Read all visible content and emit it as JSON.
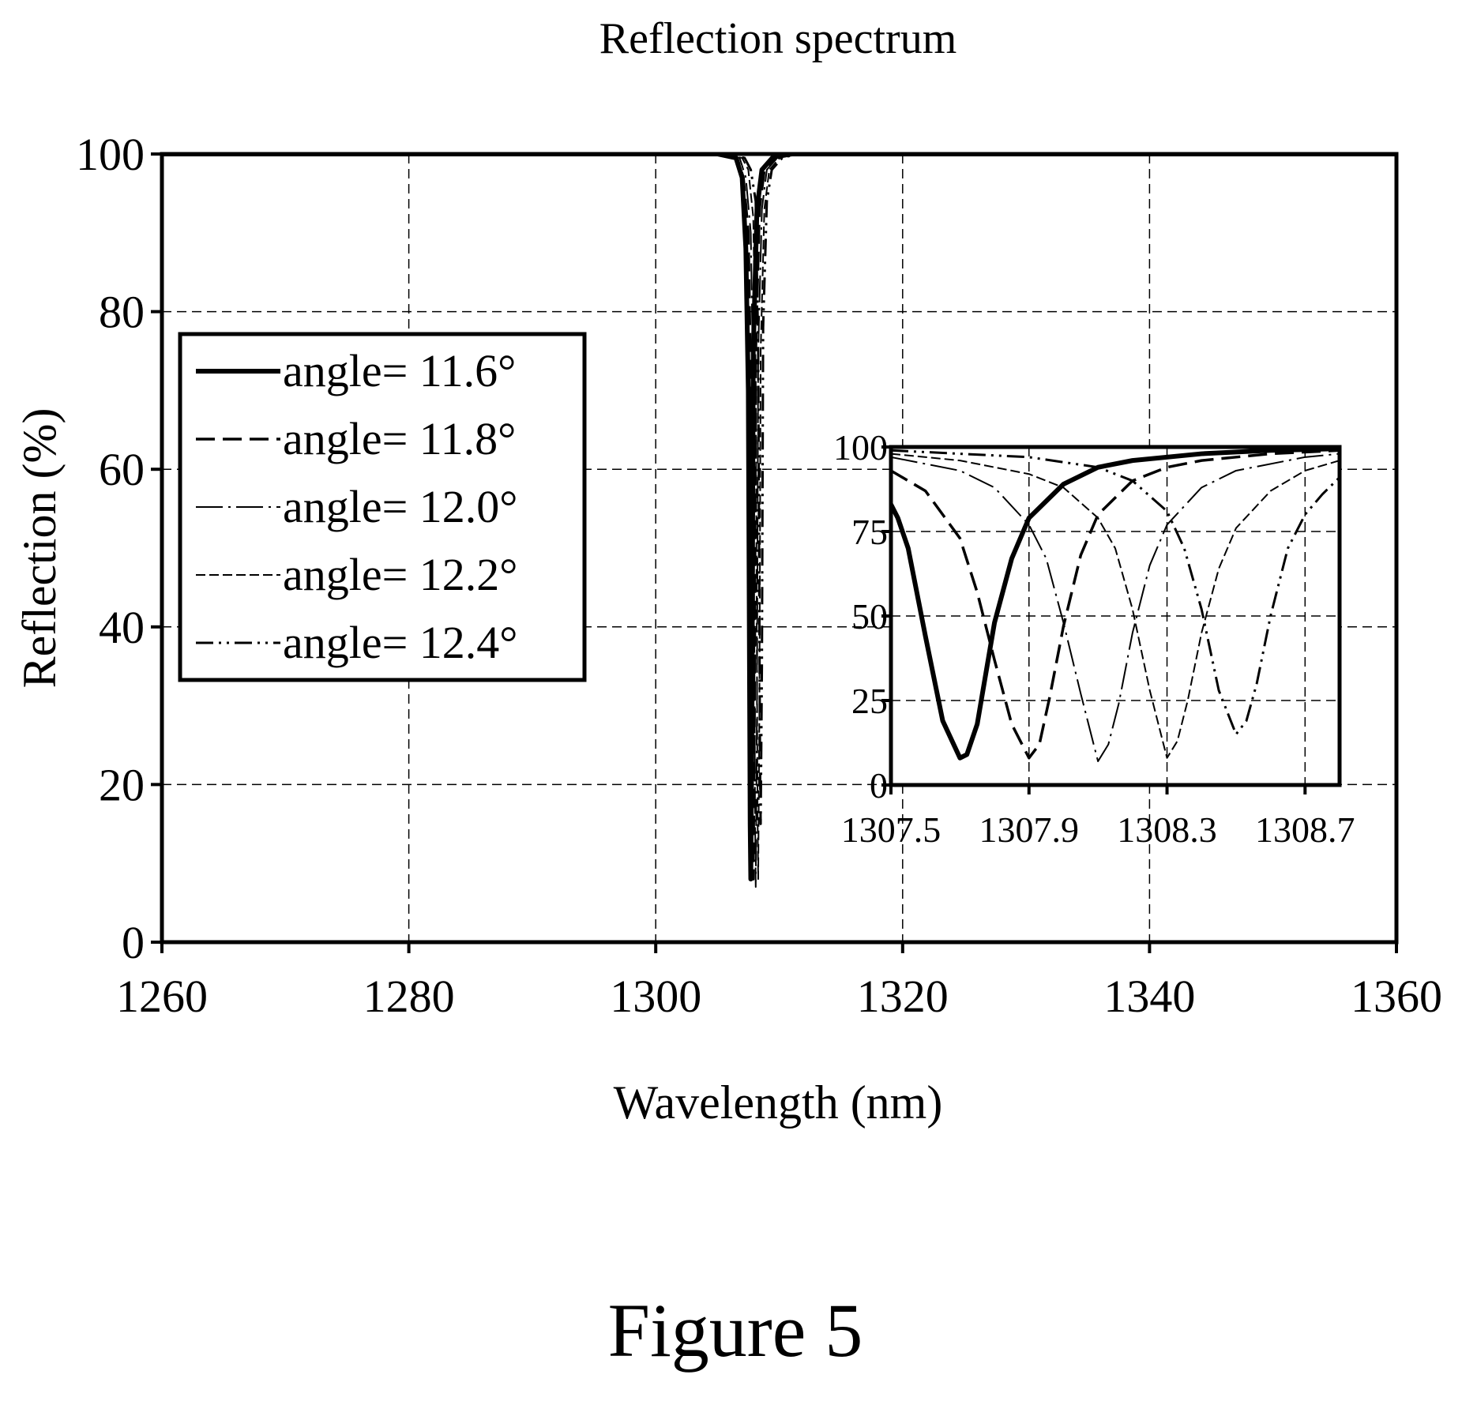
{
  "caption": "Figure 5",
  "chart_data": [
    {
      "type": "line",
      "title": "Reflection spectrum",
      "xlabel": "Wavelength (nm)",
      "ylabel": "Reflection (%)",
      "xlim": [
        1260,
        1360
      ],
      "ylim": [
        0,
        100
      ],
      "xticks": [
        1260,
        1280,
        1300,
        1320,
        1340,
        1360
      ],
      "yticks": [
        0,
        20,
        40,
        60,
        80,
        100
      ],
      "grid": true,
      "legend": {
        "position": "left",
        "entries": [
          "angle= 11.6°",
          "angle= 11.8°",
          "angle= 12.0°",
          "angle= 12.2°",
          "angle= 12.4°"
        ]
      },
      "series": [
        {
          "name": "angle= 11.6°",
          "style": "solid-thick",
          "x": [
            1260,
            1305,
            1306.5,
            1307.0,
            1307.3,
            1307.5,
            1307.65,
            1307.7,
            1307.8,
            1307.9,
            1308.2,
            1308.6,
            1309.5,
            1311,
            1360
          ],
          "y": [
            100,
            100,
            99.5,
            97,
            88,
            70,
            15,
            8,
            30,
            75,
            93,
            98,
            99.6,
            100,
            100
          ]
        },
        {
          "name": "angle= 11.8°",
          "style": "dashed",
          "x": [
            1260,
            1305,
            1306.6,
            1307.1,
            1307.5,
            1307.7,
            1307.85,
            1307.9,
            1308.0,
            1308.1,
            1308.4,
            1308.8,
            1309.7,
            1311.2,
            1360
          ],
          "y": [
            100,
            100,
            99.5,
            97,
            90,
            70,
            15,
            8,
            30,
            75,
            93,
            98,
            99.6,
            100,
            100
          ]
        },
        {
          "name": "angle= 12.0°",
          "style": "dash-dot",
          "x": [
            1260,
            1305.2,
            1306.8,
            1307.3,
            1307.7,
            1307.9,
            1308.05,
            1308.1,
            1308.2,
            1308.3,
            1308.6,
            1309.0,
            1309.9,
            1311.4,
            1360
          ],
          "y": [
            100,
            100,
            99.5,
            97,
            90,
            70,
            15,
            7,
            30,
            75,
            93,
            98,
            99.6,
            100,
            100
          ]
        },
        {
          "name": "angle= 12.2°",
          "style": "dashed-thin",
          "x": [
            1260,
            1305.4,
            1307.0,
            1307.5,
            1307.9,
            1308.1,
            1308.25,
            1308.3,
            1308.4,
            1308.5,
            1308.8,
            1309.2,
            1310.1,
            1311.6,
            1360
          ],
          "y": [
            100,
            100,
            99.5,
            98,
            92,
            72,
            16,
            8,
            30,
            75,
            93,
            98,
            99.6,
            100,
            100
          ]
        },
        {
          "name": "angle= 12.4°",
          "style": "dash-dot-dot",
          "x": [
            1260,
            1305.6,
            1307.2,
            1307.7,
            1308.1,
            1308.3,
            1308.45,
            1308.5,
            1308.6,
            1308.7,
            1309.0,
            1309.4,
            1310.3,
            1311.8,
            1360
          ],
          "y": [
            100,
            100,
            99.5,
            98,
            94,
            75,
            22,
            15,
            35,
            78,
            94,
            98,
            99.6,
            100,
            100
          ]
        }
      ]
    },
    {
      "type": "line",
      "title": "",
      "xlabel": "",
      "ylabel": "",
      "xlim": [
        1307.5,
        1308.8
      ],
      "ylim": [
        0,
        100
      ],
      "xticks": [
        1307.5,
        1307.9,
        1308.3,
        1308.7
      ],
      "yticks": [
        0,
        25,
        50,
        75,
        100
      ],
      "xtick_labels": [
        "1307.5",
        "1307.9",
        "1308.3",
        "1308.7"
      ],
      "ytick_labels": [
        "0",
        "25",
        "50",
        "75",
        "100"
      ],
      "grid": true,
      "series": [
        {
          "name": "angle= 11.6°",
          "style": "solid-thick",
          "x": [
            1307.5,
            1307.52,
            1307.55,
            1307.6,
            1307.65,
            1307.7,
            1307.72,
            1307.75,
            1307.8,
            1307.85,
            1307.9,
            1308.0,
            1308.1,
            1308.2,
            1308.4,
            1308.6,
            1308.8
          ],
          "y": [
            83,
            79,
            70,
            44,
            19,
            8,
            9,
            18,
            48,
            67,
            79,
            89,
            94,
            96,
            98,
            99,
            99.5
          ]
        },
        {
          "name": "angle= 11.8°",
          "style": "dashed",
          "x": [
            1307.5,
            1307.6,
            1307.7,
            1307.75,
            1307.8,
            1307.85,
            1307.9,
            1307.93,
            1307.96,
            1308.0,
            1308.05,
            1308.1,
            1308.2,
            1308.3,
            1308.4,
            1308.6,
            1308.8
          ],
          "y": [
            93,
            87,
            73,
            57,
            37,
            18,
            8,
            12,
            26,
            47,
            68,
            80,
            90,
            94,
            96,
            98,
            99
          ]
        },
        {
          "name": "angle= 12.0°",
          "style": "dash-dot",
          "x": [
            1307.5,
            1307.7,
            1307.8,
            1307.9,
            1307.95,
            1308.0,
            1308.05,
            1308.1,
            1308.13,
            1308.16,
            1308.2,
            1308.25,
            1308.3,
            1308.4,
            1308.5,
            1308.7,
            1308.8
          ],
          "y": [
            97,
            93,
            88,
            77,
            67,
            48,
            27,
            7,
            12,
            24,
            45,
            65,
            77,
            88,
            93,
            97,
            98
          ]
        },
        {
          "name": "angle= 12.2°",
          "style": "dashed-thin",
          "x": [
            1307.5,
            1307.7,
            1307.9,
            1308.0,
            1308.1,
            1308.15,
            1308.2,
            1308.25,
            1308.3,
            1308.33,
            1308.36,
            1308.4,
            1308.45,
            1308.5,
            1308.6,
            1308.7,
            1308.8
          ],
          "y": [
            98,
            96,
            92,
            88,
            79,
            70,
            52,
            28,
            8,
            13,
            25,
            45,
            64,
            76,
            87,
            93,
            96
          ]
        },
        {
          "name": "angle= 12.4°",
          "style": "dash-dot-dot",
          "x": [
            1307.5,
            1307.7,
            1307.9,
            1308.1,
            1308.2,
            1308.3,
            1308.35,
            1308.4,
            1308.45,
            1308.5,
            1308.53,
            1308.56,
            1308.6,
            1308.65,
            1308.7,
            1308.75,
            1308.8
          ],
          "y": [
            99,
            98,
            97,
            94,
            90,
            81,
            70,
            52,
            28,
            15,
            19,
            30,
            50,
            70,
            80,
            86,
            91
          ]
        }
      ]
    }
  ]
}
